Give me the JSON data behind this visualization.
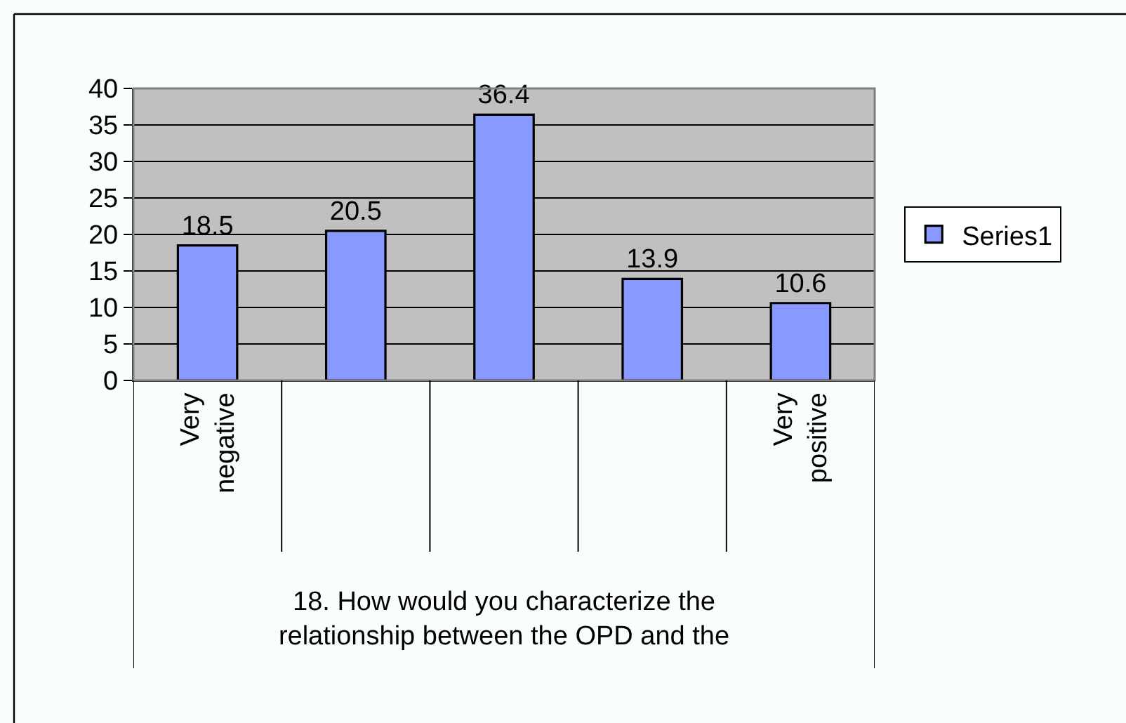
{
  "chart_data": {
    "type": "bar",
    "categories": [
      "Very negative",
      null,
      null,
      null,
      "Very positive"
    ],
    "series": [
      {
        "name": "Series1",
        "color": "#8899ff",
        "values": [
          18.5,
          20.5,
          36.4,
          13.9,
          10.6
        ]
      }
    ],
    "xlabel": "18. How would you characterize the relationship between the OPD and the",
    "ylim": [
      0,
      40
    ],
    "yticks": [
      0,
      5,
      10,
      15,
      20,
      25,
      30,
      35,
      40
    ],
    "grid": "y",
    "legend": "right",
    "data_labels": true
  }
}
